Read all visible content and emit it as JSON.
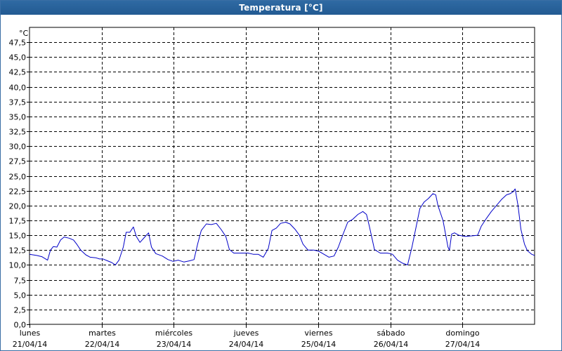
{
  "window": {
    "title": "Temperatura [°C]"
  },
  "chart_data": {
    "type": "line",
    "title": "Temperatura [°C]",
    "ylabel": "°C",
    "xlabel": "",
    "ylim": [
      0,
      50
    ],
    "xlim": [
      0,
      7
    ],
    "y_ticks": [
      "0,0",
      "2,5",
      "5,0",
      "7,5",
      "10,0",
      "12,5",
      "15,0",
      "17,5",
      "20,0",
      "22,5",
      "25,0",
      "27,5",
      "30,0",
      "32,5",
      "35,0",
      "37,5",
      "40,0",
      "42,5",
      "45,0",
      "47,5"
    ],
    "x_ticks": [
      {
        "day": "lunes",
        "date": "21/04/14"
      },
      {
        "day": "martes",
        "date": "22/04/14"
      },
      {
        "day": "miércoles",
        "date": "23/04/14"
      },
      {
        "day": "jueves",
        "date": "24/04/14"
      },
      {
        "day": "viernes",
        "date": "25/04/14"
      },
      {
        "day": "sábado",
        "date": "26/04/14"
      },
      {
        "day": "domingo",
        "date": "27/04/14"
      }
    ],
    "grid": true,
    "line_color": "#0000c8",
    "series": [
      {
        "points": [
          [
            0.0,
            11.8
          ],
          [
            0.1,
            11.6
          ],
          [
            0.17,
            11.4
          ],
          [
            0.25,
            10.8
          ],
          [
            0.29,
            12.5
          ],
          [
            0.33,
            13.1
          ],
          [
            0.38,
            13.0
          ],
          [
            0.43,
            14.2
          ],
          [
            0.48,
            14.7
          ],
          [
            0.55,
            14.5
          ],
          [
            0.61,
            14.2
          ],
          [
            0.66,
            13.4
          ],
          [
            0.71,
            12.5
          ],
          [
            0.78,
            11.7
          ],
          [
            0.84,
            11.3
          ],
          [
            0.92,
            11.2
          ],
          [
            0.97,
            11.0
          ],
          [
            1.02,
            11.0
          ],
          [
            1.08,
            10.7
          ],
          [
            1.14,
            10.4
          ],
          [
            1.19,
            10.0
          ],
          [
            1.24,
            10.8
          ],
          [
            1.3,
            13.0
          ],
          [
            1.34,
            15.5
          ],
          [
            1.39,
            15.5
          ],
          [
            1.44,
            16.4
          ],
          [
            1.48,
            14.8
          ],
          [
            1.53,
            13.8
          ],
          [
            1.59,
            14.6
          ],
          [
            1.65,
            15.4
          ],
          [
            1.69,
            13.0
          ],
          [
            1.75,
            11.9
          ],
          [
            1.84,
            11.5
          ],
          [
            1.92,
            10.9
          ],
          [
            1.99,
            10.6
          ],
          [
            2.06,
            10.8
          ],
          [
            2.14,
            10.5
          ],
          [
            2.22,
            10.7
          ],
          [
            2.28,
            10.9
          ],
          [
            2.33,
            13.5
          ],
          [
            2.38,
            15.8
          ],
          [
            2.45,
            16.9
          ],
          [
            2.52,
            16.8
          ],
          [
            2.59,
            17.0
          ],
          [
            2.66,
            15.9
          ],
          [
            2.72,
            14.8
          ],
          [
            2.77,
            12.6
          ],
          [
            2.83,
            12.0
          ],
          [
            2.92,
            12.0
          ],
          [
            3.03,
            12.0
          ],
          [
            3.1,
            11.8
          ],
          [
            3.17,
            11.8
          ],
          [
            3.24,
            11.3
          ],
          [
            3.31,
            12.8
          ],
          [
            3.36,
            15.8
          ],
          [
            3.42,
            16.2
          ],
          [
            3.48,
            17.0
          ],
          [
            3.55,
            17.2
          ],
          [
            3.61,
            16.9
          ],
          [
            3.68,
            16.0
          ],
          [
            3.74,
            15.0
          ],
          [
            3.79,
            13.5
          ],
          [
            3.86,
            12.5
          ],
          [
            3.94,
            12.5
          ],
          [
            4.01,
            12.3
          ],
          [
            4.08,
            11.8
          ],
          [
            4.15,
            11.3
          ],
          [
            4.22,
            11.5
          ],
          [
            4.28,
            13.0
          ],
          [
            4.34,
            15.0
          ],
          [
            4.41,
            17.2
          ],
          [
            4.48,
            17.7
          ],
          [
            4.55,
            18.5
          ],
          [
            4.62,
            19.0
          ],
          [
            4.67,
            18.5
          ],
          [
            4.71,
            16.5
          ],
          [
            4.78,
            12.6
          ],
          [
            4.86,
            12.0
          ],
          [
            4.96,
            12.0
          ],
          [
            5.03,
            11.8
          ],
          [
            5.1,
            10.8
          ],
          [
            5.17,
            10.3
          ],
          [
            5.24,
            10.0
          ],
          [
            5.3,
            13.0
          ],
          [
            5.36,
            16.5
          ],
          [
            5.41,
            19.5
          ],
          [
            5.47,
            20.6
          ],
          [
            5.53,
            21.2
          ],
          [
            5.59,
            22.0
          ],
          [
            5.63,
            21.8
          ],
          [
            5.66,
            20.0
          ],
          [
            5.73,
            17.5
          ],
          [
            5.8,
            13.0
          ],
          [
            5.82,
            12.5
          ],
          [
            5.85,
            15.2
          ],
          [
            5.89,
            15.4
          ],
          [
            5.95,
            15.0
          ],
          [
            6.04,
            14.8
          ],
          [
            6.14,
            14.9
          ],
          [
            6.21,
            15.0
          ],
          [
            6.26,
            16.5
          ],
          [
            6.33,
            17.8
          ],
          [
            6.4,
            19.0
          ],
          [
            6.47,
            20.0
          ],
          [
            6.54,
            21.0
          ],
          [
            6.61,
            21.8
          ],
          [
            6.66,
            22.0
          ],
          [
            6.7,
            22.3
          ],
          [
            6.73,
            22.8
          ],
          [
            6.77,
            20.0
          ],
          [
            6.81,
            16.0
          ],
          [
            6.86,
            13.5
          ],
          [
            6.9,
            12.4
          ],
          [
            6.96,
            11.8
          ],
          [
            7.0,
            11.6
          ]
        ]
      }
    ]
  }
}
